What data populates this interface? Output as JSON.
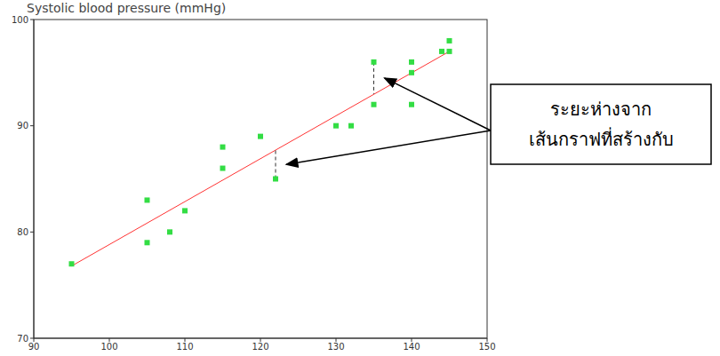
{
  "chart_data": {
    "type": "scatter",
    "title": "Systolic blood pressure (mmHg)",
    "series": [
      {
        "type": "scatter",
        "color": "#33dd44",
        "marker": "square",
        "x": [
          95,
          105,
          105,
          108,
          110,
          115,
          115,
          120,
          122,
          130,
          132,
          135,
          135,
          140,
          140,
          140,
          144,
          145,
          145
        ],
        "values": [
          77,
          83,
          79,
          80,
          82,
          88,
          86,
          89,
          85,
          90,
          90,
          96,
          92,
          96,
          95,
          92,
          97,
          98,
          97
        ]
      },
      {
        "type": "line",
        "color": "#ff3333",
        "line_style": "solid",
        "x": [
          95,
          145
        ],
        "values": [
          76.8,
          97
        ]
      }
    ],
    "residuals": [
      {
        "x": 122,
        "from": 85,
        "to": 87.7
      },
      {
        "x": 135,
        "from": 96,
        "to": 93
      }
    ],
    "annotation": {
      "text": [
        "ระยะห่างจาก",
        "เส้นกราฟที่สร้างกับ"
      ]
    },
    "xlim": [
      90,
      150
    ],
    "xticks": [
      90,
      100,
      110,
      120,
      130,
      140,
      150
    ],
    "ylim": [
      70,
      100
    ],
    "yticks": [
      70,
      80,
      90,
      100
    ],
    "grid": false
  }
}
